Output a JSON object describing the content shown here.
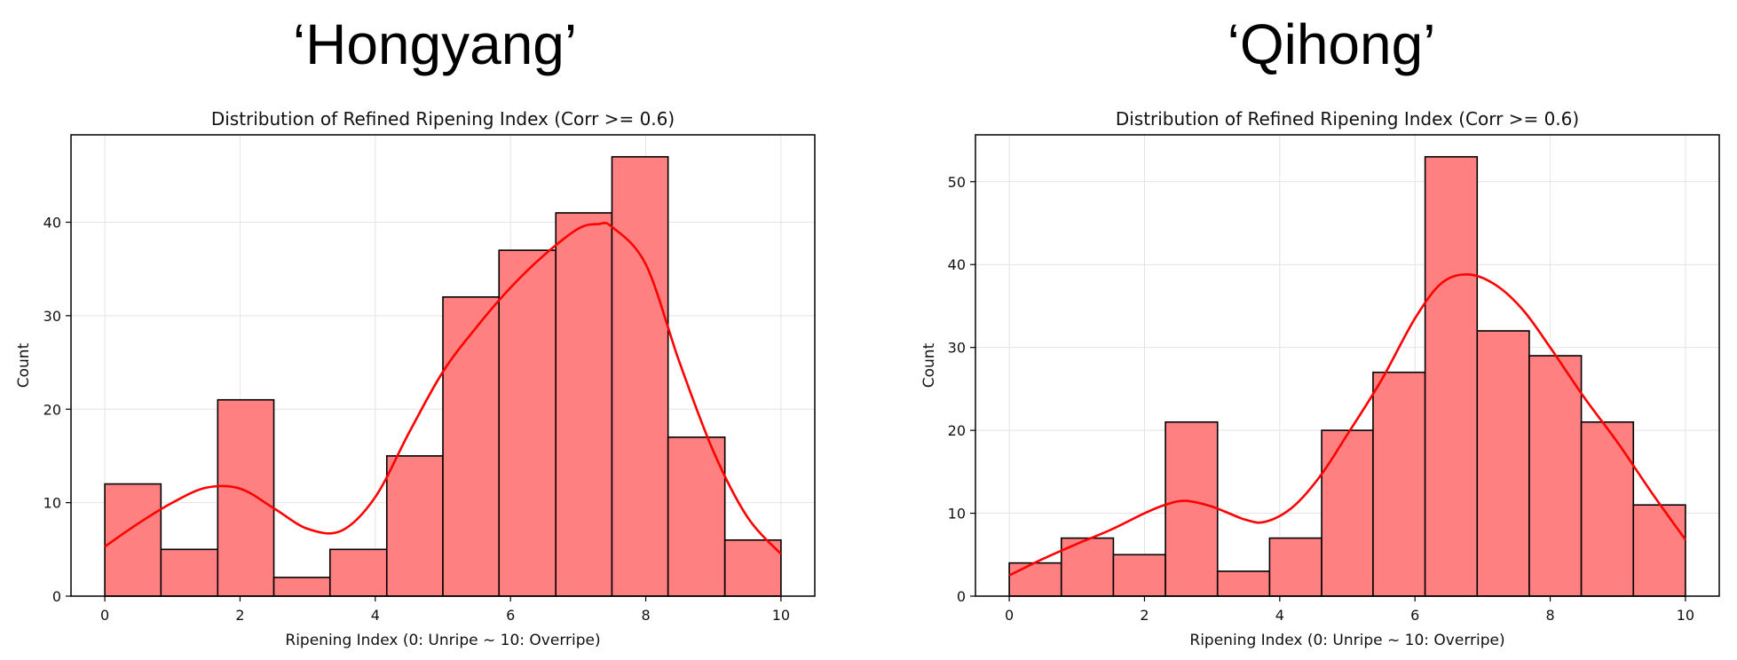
{
  "chart_data": [
    {
      "type": "bar",
      "heading": "‘Hongyang’",
      "title": "Distribution of Refined Ripening Index (Corr >= 0.6)",
      "xlabel": "Ripening Index (0: Unripe ~ 10: Overripe)",
      "ylabel": "Count",
      "bin_edges": [
        0,
        0.83,
        1.67,
        2.5,
        3.33,
        4.17,
        5.0,
        5.83,
        6.67,
        7.5,
        8.33,
        9.17,
        10.0
      ],
      "values": [
        12,
        5,
        21,
        2,
        5,
        15,
        32,
        37,
        41,
        47,
        17,
        6
      ],
      "kde": {
        "x": [
          0,
          0.5,
          1.0,
          1.5,
          2.0,
          2.5,
          3.0,
          3.5,
          4.0,
          4.5,
          5.0,
          5.5,
          6.0,
          6.5,
          7.0,
          7.3,
          7.5,
          8.0,
          8.5,
          9.0,
          9.5,
          10.0
        ],
        "y": [
          5.3,
          7.8,
          10.0,
          11.6,
          11.5,
          9.4,
          7.2,
          7.0,
          10.6,
          17.5,
          24.0,
          28.8,
          33.0,
          36.5,
          39.3,
          39.8,
          39.5,
          35.5,
          25.0,
          15.5,
          8.5,
          4.5
        ]
      },
      "xlim": [
        -0.5,
        10.5
      ],
      "ylim": [
        0,
        49.35
      ],
      "xticks": [
        0,
        2,
        4,
        6,
        8,
        10
      ],
      "yticks": [
        0,
        10,
        20,
        30,
        40
      ],
      "grid": true,
      "bar_color": "#ff8080",
      "kde_color": "#ff0000"
    },
    {
      "type": "bar",
      "heading": "‘Qihong’",
      "title": "Distribution of Refined Ripening Index (Corr >= 0.6)",
      "xlabel": "Ripening Index (0: Unripe ~ 10: Overripe)",
      "ylabel": "Count",
      "bin_edges": [
        0,
        0.77,
        1.54,
        2.31,
        3.08,
        3.85,
        4.62,
        5.38,
        6.15,
        6.92,
        7.69,
        8.46,
        9.23,
        10.0
      ],
      "values": [
        4,
        7,
        5,
        21,
        3,
        7,
        20,
        27,
        53,
        32,
        29,
        21,
        11
      ],
      "kde": {
        "x": [
          0,
          0.5,
          1.0,
          1.5,
          2.0,
          2.3,
          2.6,
          3.0,
          3.5,
          3.8,
          4.2,
          4.6,
          5.0,
          5.5,
          6.0,
          6.4,
          6.8,
          7.2,
          7.6,
          8.0,
          8.5,
          9.0,
          9.5,
          10.0
        ],
        "y": [
          2.5,
          4.5,
          6.3,
          8.0,
          10.0,
          11.0,
          11.5,
          10.8,
          9.2,
          9.0,
          10.8,
          14.5,
          19.5,
          26.0,
          33.5,
          37.8,
          38.8,
          37.5,
          34.5,
          30.0,
          24.0,
          18.5,
          12.5,
          6.8
        ]
      },
      "xlim": [
        -0.5,
        10.5
      ],
      "ylim": [
        0,
        55.65
      ],
      "xticks": [
        0,
        2,
        4,
        6,
        8,
        10
      ],
      "yticks": [
        0,
        10,
        20,
        30,
        40,
        50
      ],
      "grid": true,
      "bar_color": "#ff8080",
      "kde_color": "#ff0000"
    }
  ]
}
